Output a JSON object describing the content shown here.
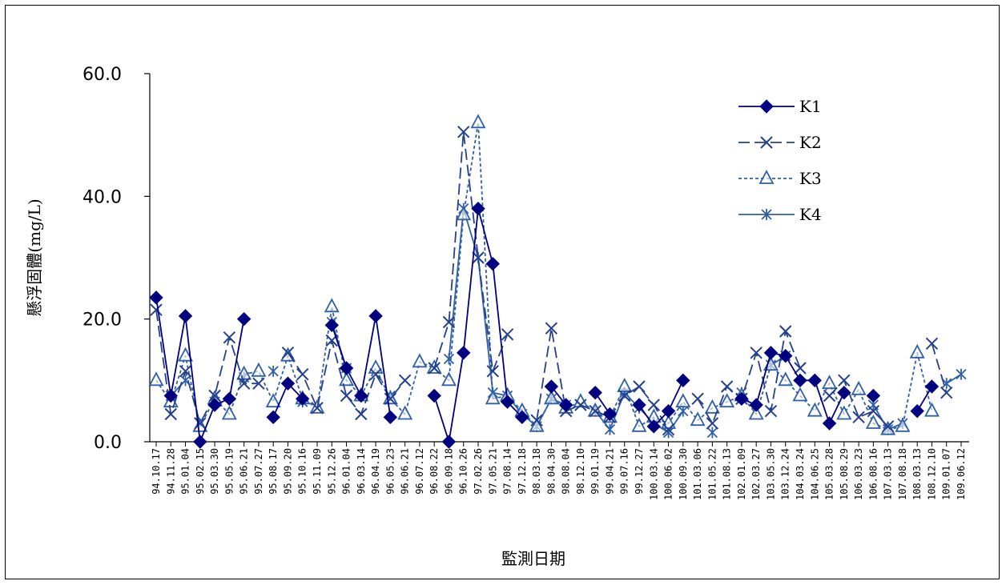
{
  "chart_data": {
    "type": "line",
    "title": "",
    "xlabel": "監測日期",
    "ylabel": "懸浮固體(mg/L)",
    "ylim": [
      0,
      60
    ],
    "yticks": [
      "0.0",
      "20.0",
      "40.0",
      "60.0"
    ],
    "grid": false,
    "legend_position": "top-right",
    "categories": [
      "94.10.17",
      "94.11.28",
      "95.01.04",
      "95.02.15",
      "95.03.30",
      "95.05.19",
      "95.06.21",
      "95.07.27",
      "95.08.17",
      "95.09.20",
      "95.10.16",
      "95.11.09",
      "95.12.26",
      "96.01.04",
      "96.03.14",
      "96.04.19",
      "96.05.23",
      "96.06.21",
      "96.07.12",
      "96.08.22",
      "96.09.18",
      "96.10.26",
      "97.02.26",
      "97.05.21",
      "97.08.14",
      "97.12.18",
      "98.03.18",
      "98.04.30",
      "98.08.04",
      "98.12.10",
      "99.01.19",
      "99.04.21",
      "99.07.16",
      "99.12.27",
      "100.03.14",
      "100.06.02",
      "100.09.30",
      "101.03.06",
      "101.05.22",
      "101.08.13",
      "102.01.09",
      "102.03.27",
      "103.05.30",
      "103.12.24",
      "104.03.24",
      "104.06.25",
      "105.03.28",
      "105.08.29",
      "106.03.23",
      "106.08.16",
      "107.03.13",
      "107.08.18",
      "108.03.13",
      "108.12.10",
      "109.01.07",
      "109.06.12"
    ],
    "series": [
      {
        "name": "K1",
        "color": "#000080",
        "dash": "",
        "marker": "diamond",
        "values": [
          23.5,
          7.5,
          20.5,
          0.0,
          6.0,
          7.0,
          20.0,
          null,
          4.0,
          9.5,
          7.0,
          null,
          19.0,
          12.0,
          7.5,
          20.5,
          4.0,
          null,
          null,
          7.5,
          0.0,
          14.5,
          38.0,
          29.0,
          6.5,
          4.0,
          null,
          9.0,
          6.0,
          null,
          8.0,
          4.5,
          null,
          6.0,
          2.5,
          5.0,
          10.0,
          null,
          null,
          null,
          7.0,
          6.0,
          14.5,
          14.0,
          10.0,
          10.0,
          3.0,
          8.0,
          null,
          7.5,
          null,
          null,
          5.0,
          9.0,
          null,
          null
        ]
      },
      {
        "name": "K2",
        "color": "#24408e",
        "dash": "14,6",
        "marker": "x",
        "values": [
          21.5,
          4.5,
          11.5,
          3.0,
          7.5,
          17.0,
          9.5,
          9.5,
          null,
          14.5,
          11.0,
          5.5,
          16.5,
          7.5,
          4.5,
          11.0,
          7.0,
          10.0,
          null,
          12.0,
          19.5,
          50.5,
          30.0,
          11.5,
          17.5,
          null,
          3.5,
          18.5,
          5.0,
          6.0,
          5.0,
          4.0,
          7.5,
          9.0,
          6.0,
          2.0,
          null,
          7.0,
          3.0,
          9.0,
          7.0,
          14.5,
          5.0,
          18.0,
          12.0,
          null,
          7.5,
          10.0,
          4.0,
          5.0,
          2.5,
          null,
          null,
          16.0,
          8.0,
          null
        ]
      },
      {
        "name": "K3",
        "color": "#2f5fa8",
        "dash": "4,3",
        "marker": "triangle",
        "values": [
          10.0,
          6.5,
          14.0,
          2.5,
          7.0,
          4.5,
          11.0,
          11.5,
          6.5,
          14.0,
          7.0,
          5.5,
          22.0,
          10.0,
          7.5,
          12.0,
          7.0,
          4.5,
          13.0,
          12.0,
          10.0,
          37.0,
          52.0,
          7.0,
          7.5,
          5.0,
          2.5,
          7.0,
          5.5,
          6.5,
          5.0,
          4.0,
          9.0,
          2.5,
          4.0,
          3.0,
          6.5,
          3.5,
          5.5,
          6.5,
          7.5,
          4.5,
          12.5,
          10.0,
          7.5,
          5.0,
          9.5,
          4.5,
          8.5,
          3.0,
          2.0,
          2.5,
          14.5,
          5.0,
          null,
          null
        ]
      },
      {
        "name": "K4",
        "color": "#2f5fa8",
        "dash": "",
        "marker": "star",
        "values": [
          null,
          7.5,
          10.0,
          null,
          6.5,
          null,
          10.5,
          null,
          11.5,
          null,
          6.5,
          null,
          19.5,
          12.0,
          null,
          null,
          7.5,
          null,
          null,
          null,
          13.5,
          38.0,
          30.0,
          8.0,
          7.5,
          4.5,
          2.5,
          7.0,
          6.0,
          null,
          5.0,
          2.0,
          8.0,
          5.5,
          3.0,
          1.5,
          5.0,
          null,
          1.5,
          null,
          8.0,
          null,
          12.5,
          14.0,
          null,
          null,
          null,
          null,
          null,
          6.0,
          2.0,
          3.0,
          null,
          null,
          9.5,
          11.0
        ]
      }
    ]
  }
}
